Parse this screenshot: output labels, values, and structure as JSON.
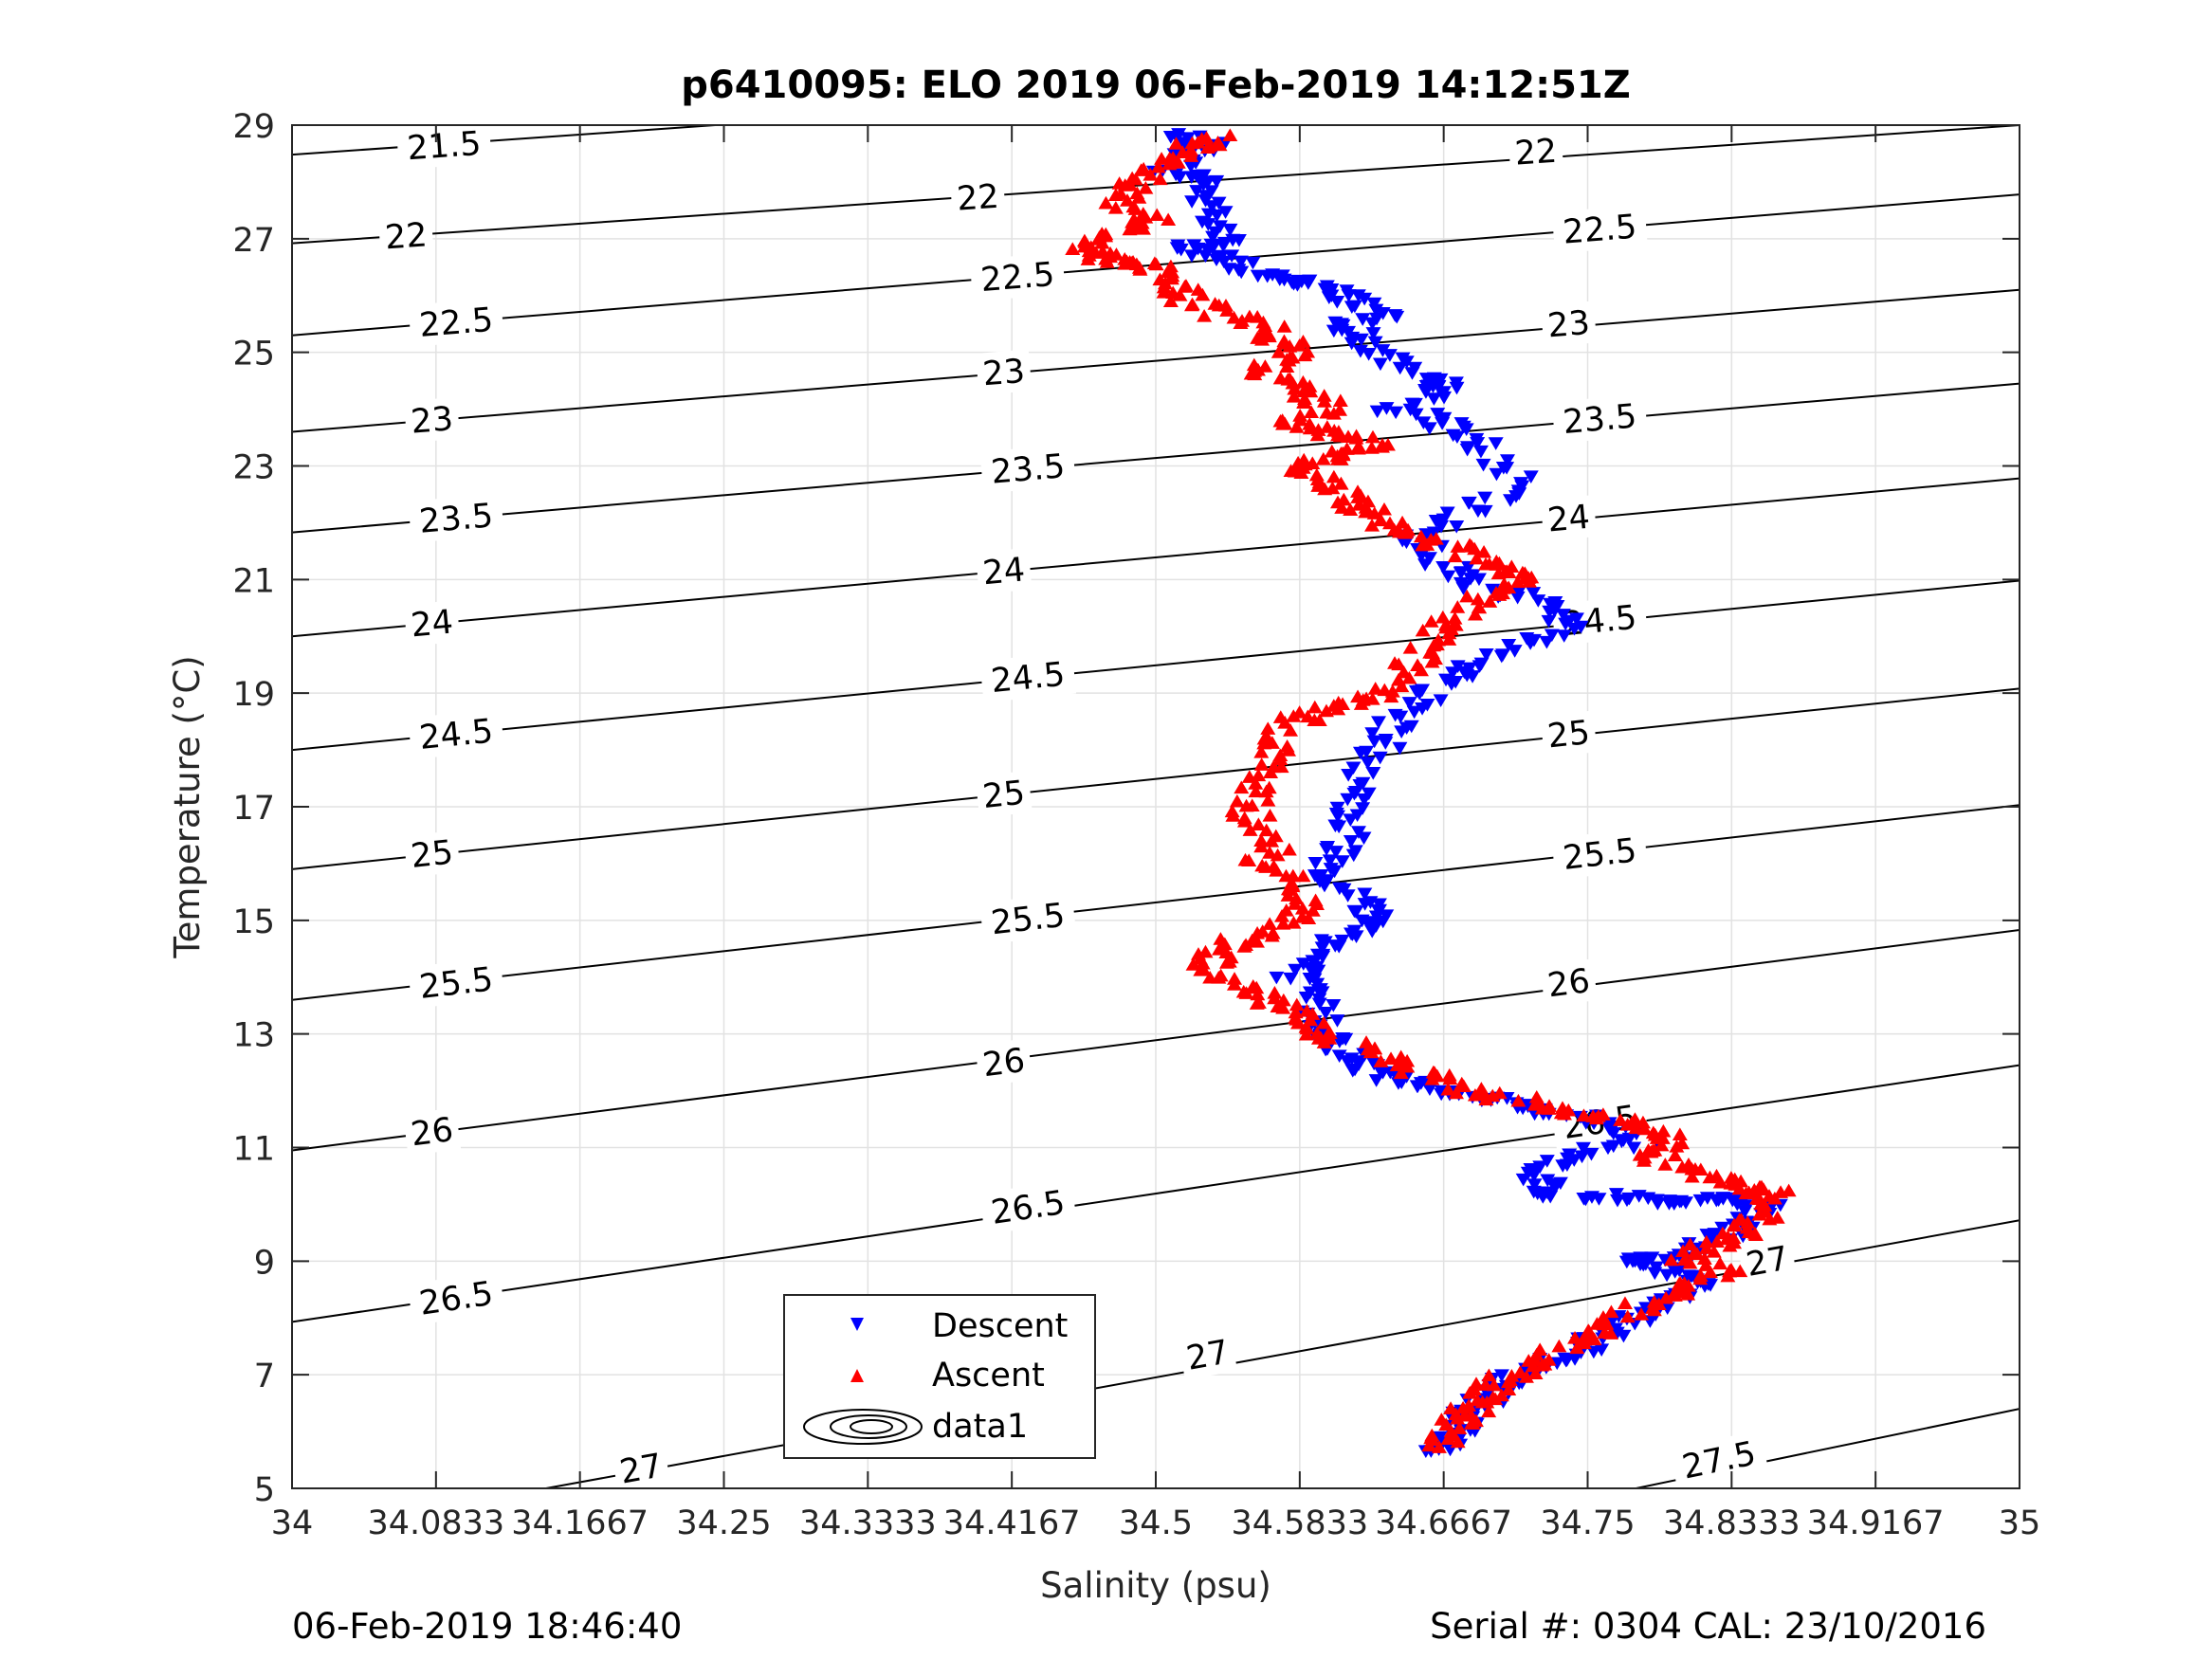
{
  "chart_data": {
    "type": "scatter",
    "title": "p6410095: ELO 2019 06-Feb-2019 14:12:51Z",
    "xlabel": "Salinity (psu)",
    "ylabel": "Temperature (°C)",
    "xlim": [
      34,
      35
    ],
    "ylim": [
      5,
      29
    ],
    "x_ticks": [
      "34",
      "34.0833",
      "34.1667",
      "34.25",
      "34.3333",
      "34.4167",
      "34.5",
      "34.5833",
      "34.6667",
      "34.75",
      "34.8333",
      "34.9167",
      "35"
    ],
    "y_ticks": [
      "5",
      "7",
      "9",
      "11",
      "13",
      "15",
      "17",
      "19",
      "21",
      "23",
      "25",
      "27",
      "29"
    ],
    "grid": true,
    "legend_position": "lower-left inside",
    "legend": [
      "Descent",
      "Ascent",
      "data1"
    ],
    "colors": {
      "descent": "#0000ff",
      "ascent": "#ff0000",
      "contour": "#000000"
    },
    "density_contours": {
      "levels": [
        21.5,
        22,
        22.5,
        23,
        23.5,
        24,
        24.5,
        25,
        25.5,
        26,
        26.5,
        27,
        27.5
      ],
      "lines": [
        {
          "level": 21.5,
          "points": [
            [
              34.0,
              28.48
            ],
            [
              34.245,
              29.0
            ]
          ]
        },
        {
          "level": 22,
          "points": [
            [
              34.0,
              26.92
            ],
            [
              35.0,
              29.0
            ]
          ]
        },
        {
          "level": 22.5,
          "points": [
            [
              34.0,
              25.3
            ],
            [
              35.0,
              27.78
            ]
          ]
        },
        {
          "level": 23,
          "points": [
            [
              34.0,
              23.6
            ],
            [
              35.0,
              26.1
            ]
          ]
        },
        {
          "level": 23.5,
          "points": [
            [
              34.0,
              21.83
            ],
            [
              35.0,
              24.45
            ]
          ]
        },
        {
          "level": 24,
          "points": [
            [
              34.0,
              20.0
            ],
            [
              35.0,
              22.78
            ]
          ]
        },
        {
          "level": 24.5,
          "points": [
            [
              34.0,
              18.0
            ],
            [
              35.0,
              20.98
            ]
          ]
        },
        {
          "level": 25,
          "points": [
            [
              34.0,
              15.9
            ],
            [
              35.0,
              19.08
            ]
          ]
        },
        {
          "level": 25.5,
          "points": [
            [
              34.0,
              13.6
            ],
            [
              35.0,
              17.03
            ]
          ]
        },
        {
          "level": 26,
          "points": [
            [
              34.0,
              10.95
            ],
            [
              35.0,
              14.83
            ]
          ]
        },
        {
          "level": 26.5,
          "points": [
            [
              34.0,
              7.93
            ],
            [
              35.0,
              12.45
            ]
          ]
        },
        {
          "level": 27,
          "points": [
            [
              34.147,
              5.0
            ],
            [
              35.0,
              9.72
            ]
          ]
        },
        {
          "level": 27.5,
          "points": [
            [
              34.778,
              5.0
            ],
            [
              35.0,
              6.4
            ]
          ]
        }
      ],
      "labels": [
        {
          "text": "21.5",
          "x": 34.088,
          "y": 28.64
        },
        {
          "text": "22",
          "x": 34.066,
          "y": 27.05
        },
        {
          "text": "22",
          "x": 34.397,
          "y": 27.73
        },
        {
          "text": "22",
          "x": 34.72,
          "y": 28.53
        },
        {
          "text": "22.5",
          "x": 34.095,
          "y": 25.53
        },
        {
          "text": "22.5",
          "x": 34.42,
          "y": 26.33
        },
        {
          "text": "22.5",
          "x": 34.757,
          "y": 27.17
        },
        {
          "text": "23",
          "x": 34.081,
          "y": 23.81
        },
        {
          "text": "23",
          "x": 34.412,
          "y": 24.65
        },
        {
          "text": "23",
          "x": 34.739,
          "y": 25.5
        },
        {
          "text": "23.5",
          "x": 34.095,
          "y": 22.08
        },
        {
          "text": "23.5",
          "x": 34.426,
          "y": 22.95
        },
        {
          "text": "23.5",
          "x": 34.757,
          "y": 23.83
        },
        {
          "text": "24",
          "x": 34.081,
          "y": 20.23
        },
        {
          "text": "24",
          "x": 34.412,
          "y": 21.15
        },
        {
          "text": "24",
          "x": 34.739,
          "y": 22.08
        },
        {
          "text": "24.5",
          "x": 34.095,
          "y": 18.28
        },
        {
          "text": "24.5",
          "x": 34.426,
          "y": 19.28
        },
        {
          "text": "24.5",
          "x": 34.757,
          "y": 20.28
        },
        {
          "text": "25",
          "x": 34.081,
          "y": 16.17
        },
        {
          "text": "25",
          "x": 34.412,
          "y": 17.22
        },
        {
          "text": "25",
          "x": 34.739,
          "y": 18.28
        },
        {
          "text": "25.5",
          "x": 34.095,
          "y": 13.9
        },
        {
          "text": "25.5",
          "x": 34.426,
          "y": 15.03
        },
        {
          "text": "25.5",
          "x": 34.757,
          "y": 16.17
        },
        {
          "text": "26",
          "x": 34.081,
          "y": 11.28
        },
        {
          "text": "26",
          "x": 34.412,
          "y": 12.5
        },
        {
          "text": "26",
          "x": 34.739,
          "y": 13.9
        },
        {
          "text": "26.5",
          "x": 34.095,
          "y": 8.35
        },
        {
          "text": "26.5",
          "x": 34.426,
          "y": 9.95
        },
        {
          "text": "26.5",
          "x": 34.757,
          "y": 11.45
        },
        {
          "text": "27",
          "x": 34.202,
          "y": 5.35
        },
        {
          "text": "27",
          "x": 34.53,
          "y": 7.35
        },
        {
          "text": "27",
          "x": 34.854,
          "y": 9.0
        },
        {
          "text": "27.5",
          "x": 34.826,
          "y": 5.5
        }
      ]
    },
    "series": [
      {
        "name": "Descent",
        "profile": [
          [
            34.51,
            28.8
          ],
          [
            34.53,
            28.65
          ],
          [
            34.51,
            28.2
          ],
          [
            34.53,
            28.0
          ],
          [
            34.53,
            27.5
          ],
          [
            34.54,
            27.0
          ],
          [
            34.52,
            26.8
          ],
          [
            34.54,
            26.6
          ],
          [
            34.57,
            26.3
          ],
          [
            34.59,
            26.2
          ],
          [
            34.61,
            26.0
          ],
          [
            34.63,
            25.7
          ],
          [
            34.61,
            25.4
          ],
          [
            34.63,
            25.0
          ],
          [
            34.65,
            24.5
          ],
          [
            34.67,
            24.4
          ],
          [
            34.64,
            24.0
          ],
          [
            34.67,
            23.7
          ],
          [
            34.69,
            23.3
          ],
          [
            34.71,
            22.6
          ],
          [
            34.68,
            22.2
          ],
          [
            34.65,
            21.7
          ],
          [
            34.67,
            21.2
          ],
          [
            34.69,
            20.9
          ],
          [
            34.72,
            20.6
          ],
          [
            34.74,
            20.2
          ],
          [
            34.71,
            19.8
          ],
          [
            34.68,
            19.4
          ],
          [
            34.66,
            19.0
          ],
          [
            34.64,
            18.5
          ],
          [
            34.63,
            18.0
          ],
          [
            34.62,
            17.3
          ],
          [
            34.61,
            16.8
          ],
          [
            34.61,
            16.2
          ],
          [
            34.6,
            15.8
          ],
          [
            34.62,
            15.3
          ],
          [
            34.63,
            15.0
          ],
          [
            34.61,
            14.7
          ],
          [
            34.59,
            14.3
          ],
          [
            34.58,
            14.0
          ],
          [
            34.59,
            13.6
          ],
          [
            34.6,
            13.1
          ],
          [
            34.61,
            12.7
          ],
          [
            34.62,
            12.4
          ],
          [
            34.64,
            12.2
          ],
          [
            34.67,
            12.0
          ],
          [
            34.7,
            11.8
          ],
          [
            34.73,
            11.6
          ],
          [
            34.76,
            11.4
          ],
          [
            34.78,
            11.1
          ],
          [
            34.74,
            10.8
          ],
          [
            34.72,
            10.5
          ],
          [
            34.73,
            10.2
          ],
          [
            34.77,
            10.1
          ],
          [
            34.8,
            10.0
          ],
          [
            34.83,
            10.1
          ],
          [
            34.85,
            10.0
          ],
          [
            34.84,
            9.6
          ],
          [
            34.82,
            9.3
          ],
          [
            34.8,
            9.1
          ],
          [
            34.78,
            9.0
          ],
          [
            34.8,
            8.8
          ],
          [
            34.82,
            8.6
          ],
          [
            34.8,
            8.3
          ],
          [
            34.78,
            8.0
          ],
          [
            34.76,
            7.7
          ],
          [
            34.74,
            7.4
          ],
          [
            34.72,
            7.1
          ],
          [
            34.7,
            6.8
          ],
          [
            34.69,
            6.5
          ],
          [
            34.68,
            6.2
          ],
          [
            34.67,
            5.9
          ],
          [
            34.66,
            5.6
          ]
        ]
      },
      {
        "name": "Ascent",
        "profile": [
          [
            34.54,
            28.8
          ],
          [
            34.52,
            28.6
          ],
          [
            34.5,
            28.3
          ],
          [
            34.49,
            28.0
          ],
          [
            34.48,
            27.6
          ],
          [
            34.5,
            27.3
          ],
          [
            34.47,
            27.0
          ],
          [
            34.46,
            26.8
          ],
          [
            34.48,
            26.6
          ],
          [
            34.5,
            26.5
          ],
          [
            34.51,
            26.2
          ],
          [
            34.52,
            25.9
          ],
          [
            34.55,
            25.6
          ],
          [
            34.57,
            25.3
          ],
          [
            34.58,
            25.0
          ],
          [
            34.56,
            24.7
          ],
          [
            34.58,
            24.4
          ],
          [
            34.6,
            24.1
          ],
          [
            34.58,
            23.8
          ],
          [
            34.6,
            23.6
          ],
          [
            34.63,
            23.4
          ],
          [
            34.6,
            23.2
          ],
          [
            34.58,
            23.0
          ],
          [
            34.6,
            22.7
          ],
          [
            34.61,
            22.4
          ],
          [
            34.63,
            22.1
          ],
          [
            34.65,
            21.8
          ],
          [
            34.68,
            21.5
          ],
          [
            34.7,
            21.2
          ],
          [
            34.71,
            21.0
          ],
          [
            34.69,
            20.7
          ],
          [
            34.67,
            20.3
          ],
          [
            34.66,
            19.9
          ],
          [
            34.65,
            19.5
          ],
          [
            34.63,
            19.0
          ],
          [
            34.6,
            18.8
          ],
          [
            34.58,
            18.5
          ],
          [
            34.57,
            18.0
          ],
          [
            34.56,
            17.5
          ],
          [
            34.55,
            17.0
          ],
          [
            34.57,
            16.5
          ],
          [
            34.56,
            16.0
          ],
          [
            34.58,
            15.6
          ],
          [
            34.59,
            15.2
          ],
          [
            34.56,
            14.8
          ],
          [
            34.54,
            14.5
          ],
          [
            34.53,
            14.2
          ],
          [
            34.55,
            13.8
          ],
          [
            34.57,
            13.5
          ],
          [
            34.59,
            13.2
          ],
          [
            34.6,
            12.9
          ],
          [
            34.63,
            12.6
          ],
          [
            34.66,
            12.3
          ],
          [
            34.68,
            12.0
          ],
          [
            34.72,
            11.8
          ],
          [
            34.75,
            11.6
          ],
          [
            34.78,
            11.4
          ],
          [
            34.8,
            11.1
          ],
          [
            34.79,
            10.8
          ],
          [
            34.82,
            10.5
          ],
          [
            34.84,
            10.3
          ],
          [
            34.86,
            10.2
          ],
          [
            34.85,
            9.8
          ],
          [
            34.84,
            9.5
          ],
          [
            34.82,
            9.3
          ],
          [
            34.81,
            9.0
          ],
          [
            34.83,
            8.8
          ],
          [
            34.8,
            8.5
          ],
          [
            34.78,
            8.2
          ],
          [
            34.76,
            7.8
          ],
          [
            34.74,
            7.5
          ],
          [
            34.72,
            7.2
          ],
          [
            34.7,
            6.9
          ],
          [
            34.69,
            6.6
          ],
          [
            34.68,
            6.3
          ],
          [
            34.67,
            6.0
          ],
          [
            34.66,
            5.7
          ]
        ]
      }
    ]
  },
  "footer": {
    "left": "06-Feb-2019 18:46:40",
    "right": "Serial #: 0304  CAL: 23/10/2016"
  }
}
